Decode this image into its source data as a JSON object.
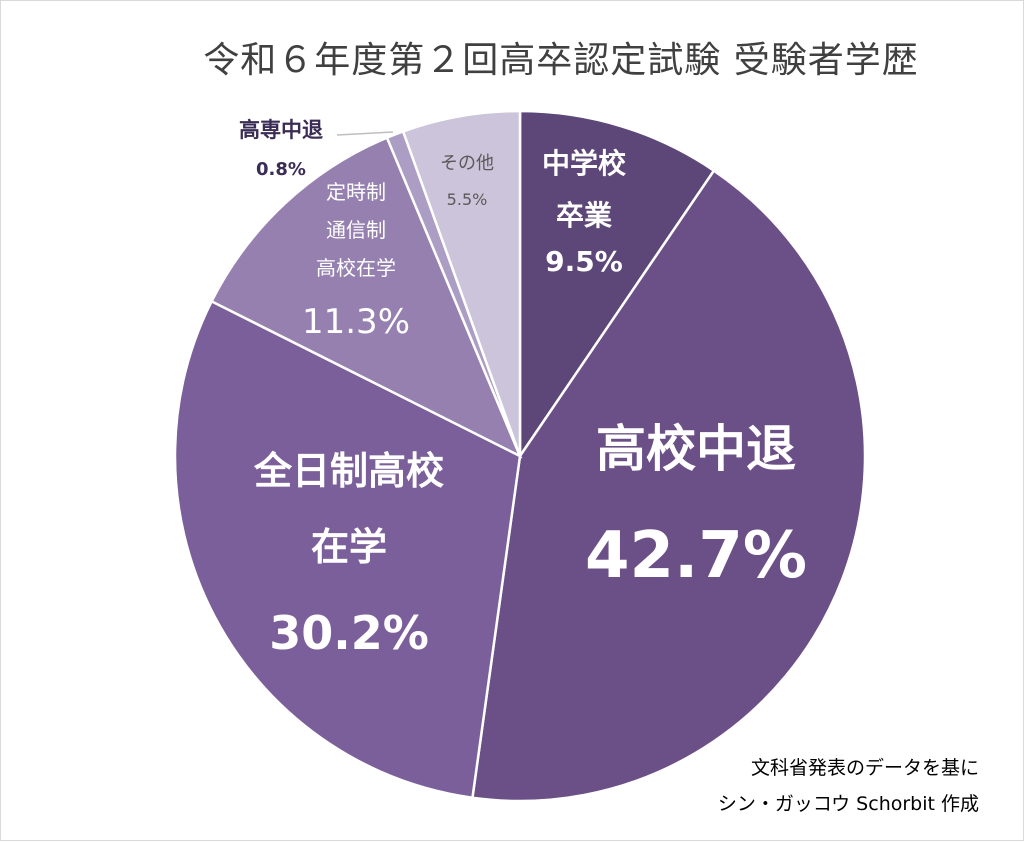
{
  "chart_data": {
    "type": "pie",
    "title": "令和６年度第２回高卒認定試験 受験者学歴",
    "slices": [
      {
        "label_lines": [
          "中学校",
          "卒業"
        ],
        "value_label": "9.5%",
        "value": 9.5,
        "color": "#5d4678"
      },
      {
        "label_lines": [
          "高校中退"
        ],
        "value_label": "42.7%",
        "value": 42.7,
        "color": "#6b5088"
      },
      {
        "label_lines": [
          "全日制高校",
          "在学"
        ],
        "value_label": "30.2%",
        "value": 30.2,
        "color": "#7b5f9a"
      },
      {
        "label_lines": [
          "定時制",
          "通信制",
          "高校在学"
        ],
        "value_label": "11.3%",
        "value": 11.3,
        "color": "#9580b0"
      },
      {
        "label_lines": [
          "高専中退"
        ],
        "value_label": "0.8%",
        "value": 0.8,
        "color": "#ab9dc3"
      },
      {
        "label_lines": [
          "その他"
        ],
        "value_label": "5.5%",
        "value": 5.5,
        "color": "#ccc4da"
      }
    ],
    "start": "12 o'clock",
    "direction": "clockwise",
    "legend": "none"
  },
  "credit": {
    "line1": "文科省発表のデータを基に",
    "line2": "シン・ガッコウ Schorbit 作成"
  }
}
